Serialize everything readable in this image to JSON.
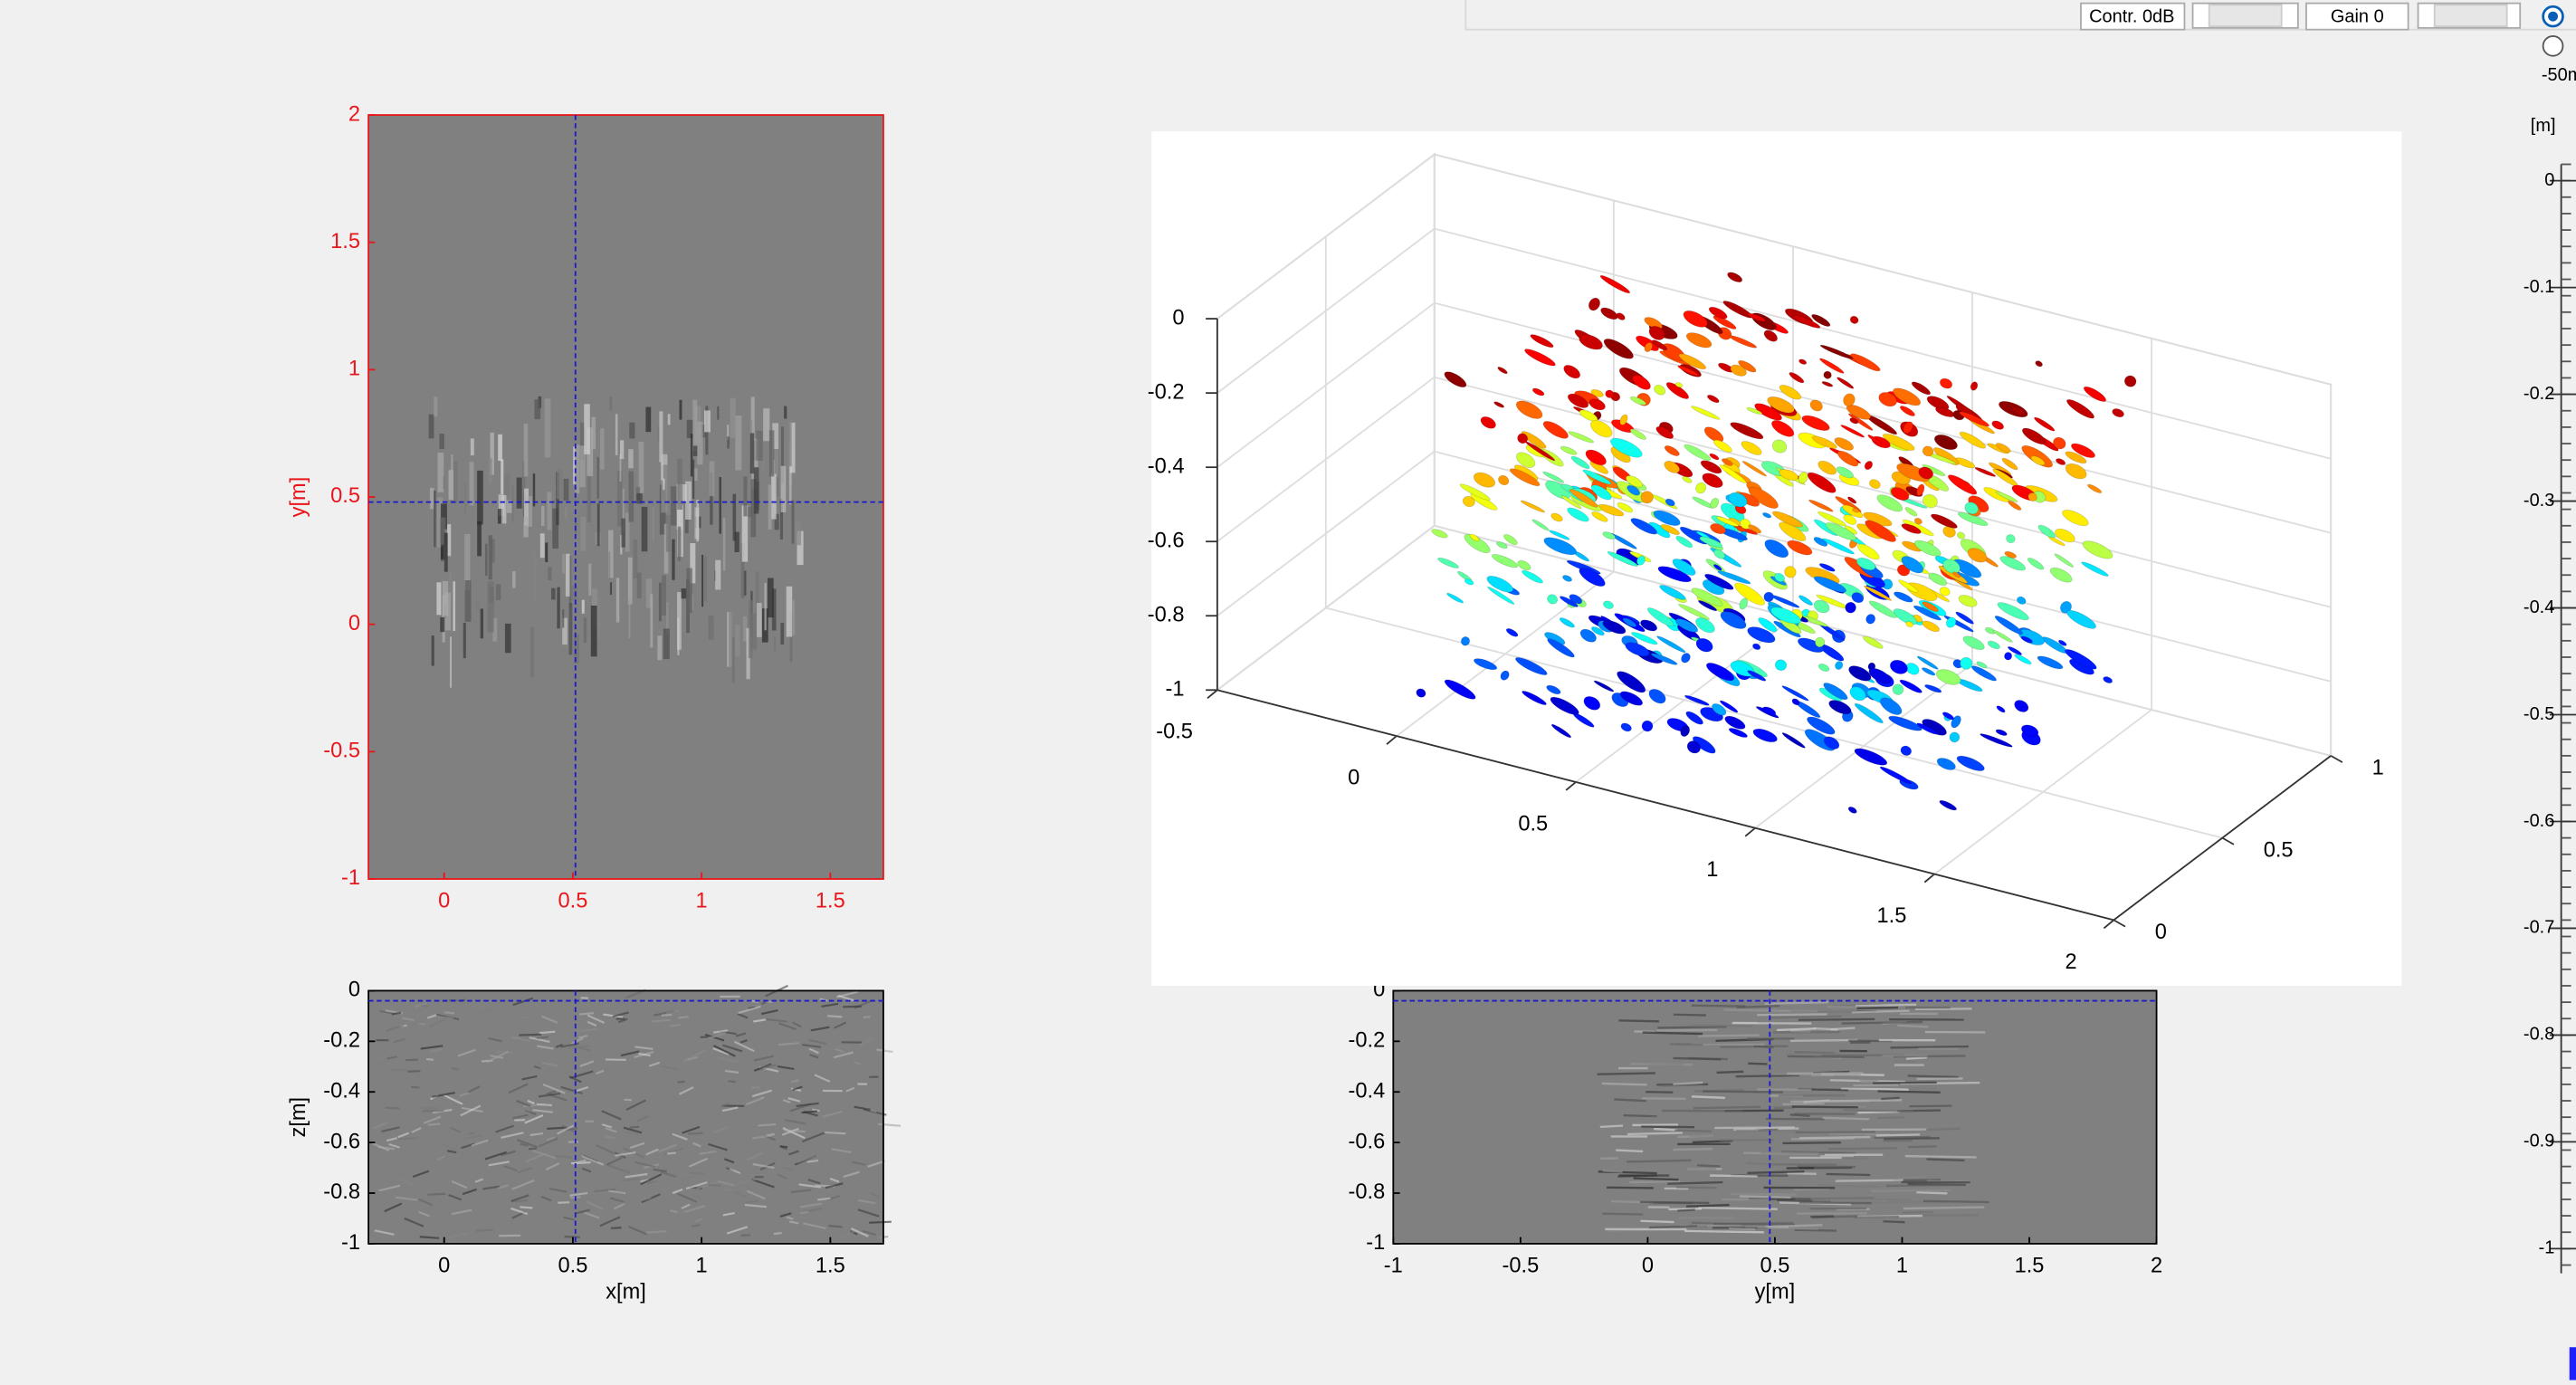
{
  "controls": {
    "contrast_label": "Contr. 0dB",
    "gain_label": "Gain 0",
    "radio_label": "-50m"
  },
  "xy_slice": {
    "ylabel": "y[m]",
    "xlim": [
      -0.294,
      1.706
    ],
    "ylim": [
      -1,
      2
    ],
    "xticks": [
      0,
      0.5,
      1,
      1.5
    ],
    "yticks": [
      -1,
      -0.5,
      0,
      0.5,
      1,
      1.5,
      2
    ],
    "crosshair": [
      0.51,
      0.48
    ]
  },
  "xz_slice": {
    "xlabel": "x[m]",
    "ylabel": "z[m]",
    "xlim": [
      -0.294,
      1.706
    ],
    "ylim": [
      -1,
      0
    ],
    "xticks": [
      0,
      0.5,
      1,
      1.5
    ],
    "yticks": [
      -1,
      -0.8,
      -0.6,
      -0.4,
      -0.2,
      0
    ],
    "crosshair": [
      0.51,
      -0.04
    ]
  },
  "yz_slice": {
    "xlabel": "y[m]",
    "xlim": [
      -1,
      2
    ],
    "ylim": [
      -1,
      0
    ],
    "xticks": [
      -1,
      -0.5,
      0,
      0.5,
      1,
      1.5,
      2
    ],
    "yticks": [
      -1,
      -0.8,
      -0.6,
      -0.4,
      -0.2,
      0
    ],
    "crosshair": [
      0.48,
      -0.04
    ]
  },
  "volume_3d": {
    "xlim": [
      -0.5,
      2
    ],
    "ylim": [
      0,
      1
    ],
    "zlim": [
      -1,
      0
    ],
    "xticks": [
      -0.5,
      0,
      0.5,
      1,
      1.5,
      2
    ],
    "yticks": [
      0,
      0.5,
      1
    ],
    "zticks": [
      -1,
      -0.8,
      -0.6,
      -0.4,
      -0.2,
      0
    ]
  },
  "depth_scale": {
    "unit": "[m]",
    "ylim": [
      -1,
      0
    ],
    "yticks": [
      -1,
      -0.9,
      -0.8,
      -0.7,
      -0.6,
      -0.5,
      -0.4,
      -0.3,
      -0.2,
      -0.1,
      0
    ]
  }
}
